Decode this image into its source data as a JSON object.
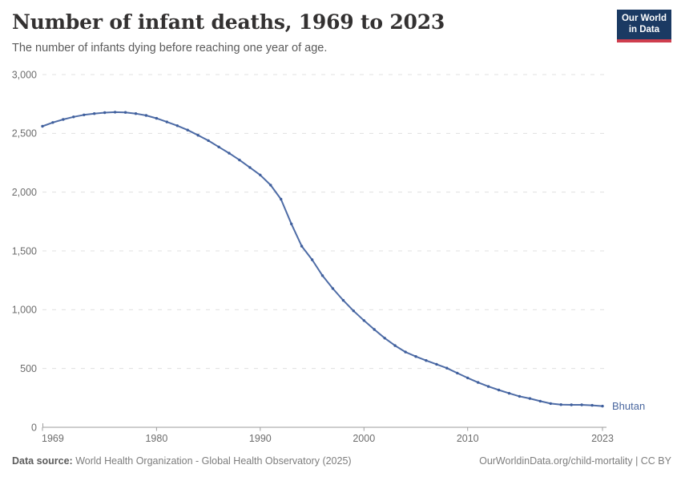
{
  "header": {
    "title": "Number of infant deaths, 1969 to 2023",
    "subtitle": "The number of infants dying before reaching one year of age."
  },
  "logo": {
    "line1": "Our World",
    "line2": "in Data",
    "bg_color": "#1b3a63",
    "accent_color": "#cf3e4e"
  },
  "chart_data": {
    "type": "line",
    "title": "Number of infant deaths, 1969 to 2023",
    "xlabel": "",
    "ylabel": "",
    "xlim": [
      1969,
      2023
    ],
    "ylim": [
      0,
      3000
    ],
    "x_ticks": [
      1969,
      1980,
      1990,
      2000,
      2010,
      2023
    ],
    "y_ticks": [
      0,
      500,
      1000,
      1500,
      2000,
      2500,
      3000
    ],
    "grid": "horizontal-dashed",
    "legend_position": "end-of-line-label",
    "series": [
      {
        "name": "Bhutan",
        "color": "#4e6ca6",
        "marker_color": "#3f5f9d",
        "x": [
          1969,
          1970,
          1971,
          1972,
          1973,
          1974,
          1975,
          1976,
          1977,
          1978,
          1979,
          1980,
          1981,
          1982,
          1983,
          1984,
          1985,
          1986,
          1987,
          1988,
          1989,
          1990,
          1991,
          1992,
          1993,
          1994,
          1995,
          1996,
          1997,
          1998,
          1999,
          2000,
          2001,
          2002,
          2003,
          2004,
          2005,
          2006,
          2007,
          2008,
          2009,
          2010,
          2011,
          2012,
          2013,
          2014,
          2015,
          2016,
          2017,
          2018,
          2019,
          2020,
          2021,
          2022,
          2023
        ],
        "values": [
          2560,
          2592,
          2618,
          2640,
          2657,
          2668,
          2676,
          2680,
          2678,
          2668,
          2652,
          2628,
          2597,
          2565,
          2528,
          2484,
          2438,
          2384,
          2331,
          2273,
          2210,
          2146,
          2060,
          1940,
          1730,
          1540,
          1425,
          1290,
          1180,
          1080,
          990,
          908,
          832,
          758,
          695,
          640,
          602,
          568,
          536,
          503,
          461,
          420,
          381,
          347,
          317,
          289,
          263,
          245,
          222,
          202,
          193,
          191,
          191,
          187,
          180
        ]
      }
    ]
  },
  "colors": {
    "grid": "#e0e0e0",
    "axis": "#9e9e9e",
    "tick_text": "#6d6d6d",
    "end_label": "#4a679f"
  },
  "footer": {
    "source_label": "Data source:",
    "source_text": " World Health Organization - Global Health Observatory (2025)",
    "credit": "OurWorldinData.org/child-mortality | CC BY"
  }
}
